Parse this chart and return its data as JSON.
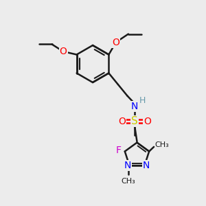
{
  "background_color": "#ececec",
  "bond_color": "#1a1a1a",
  "bond_width": 1.8,
  "atom_colors": {
    "O": "#ff0000",
    "N": "#0000ff",
    "S": "#cccc00",
    "F": "#cc00cc",
    "H": "#6699aa",
    "C": "#1a1a1a"
  },
  "font_size": 9,
  "fig_width": 3.0,
  "fig_height": 3.0
}
